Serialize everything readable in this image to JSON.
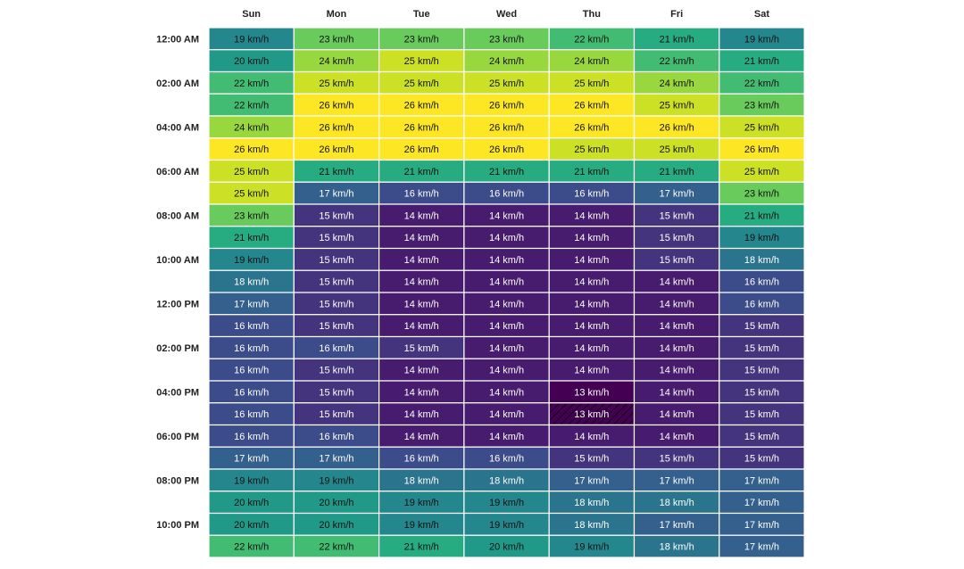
{
  "chart_data": {
    "type": "heatmap",
    "title": "",
    "xlabel": "",
    "ylabel": "",
    "unit": "km/h",
    "value_range": [
      13,
      26
    ],
    "colormap": "viridis",
    "hatched_cell": {
      "day": "Thu",
      "hour": 17
    },
    "days": [
      "Sun",
      "Mon",
      "Tue",
      "Wed",
      "Thu",
      "Fri",
      "Sat"
    ],
    "row_labels": [
      "12:00 AM",
      "",
      "02:00 AM",
      "",
      "04:00 AM",
      "",
      "06:00 AM",
      "",
      "08:00 AM",
      "",
      "10:00 AM",
      "",
      "12:00 PM",
      "",
      "02:00 PM",
      "",
      "04:00 PM",
      "",
      "06:00 PM",
      "",
      "08:00 PM",
      "",
      "10:00 PM",
      ""
    ],
    "values": [
      [
        19,
        23,
        23,
        23,
        22,
        21,
        19
      ],
      [
        20,
        24,
        25,
        24,
        24,
        22,
        21
      ],
      [
        22,
        25,
        25,
        25,
        25,
        24,
        22
      ],
      [
        22,
        26,
        26,
        26,
        26,
        25,
        23
      ],
      [
        24,
        26,
        26,
        26,
        26,
        26,
        25
      ],
      [
        26,
        26,
        26,
        26,
        25,
        25,
        26
      ],
      [
        25,
        21,
        21,
        21,
        21,
        21,
        25
      ],
      [
        25,
        17,
        16,
        16,
        16,
        17,
        23
      ],
      [
        23,
        15,
        14,
        14,
        14,
        15,
        21
      ],
      [
        21,
        15,
        14,
        14,
        14,
        15,
        19
      ],
      [
        19,
        15,
        14,
        14,
        14,
        15,
        18
      ],
      [
        18,
        15,
        14,
        14,
        14,
        14,
        16
      ],
      [
        17,
        15,
        14,
        14,
        14,
        14,
        16
      ],
      [
        16,
        15,
        14,
        14,
        14,
        14,
        15
      ],
      [
        16,
        16,
        15,
        14,
        14,
        14,
        15
      ],
      [
        16,
        15,
        14,
        14,
        14,
        14,
        15
      ],
      [
        16,
        15,
        14,
        14,
        13,
        14,
        15
      ],
      [
        16,
        15,
        14,
        14,
        13,
        14,
        15
      ],
      [
        16,
        16,
        14,
        14,
        14,
        14,
        15
      ],
      [
        17,
        17,
        16,
        16,
        15,
        15,
        15
      ],
      [
        19,
        19,
        18,
        18,
        17,
        17,
        17
      ],
      [
        20,
        20,
        19,
        19,
        18,
        18,
        17
      ],
      [
        20,
        20,
        19,
        19,
        18,
        17,
        17
      ],
      [
        22,
        22,
        21,
        20,
        19,
        18,
        17
      ]
    ]
  }
}
